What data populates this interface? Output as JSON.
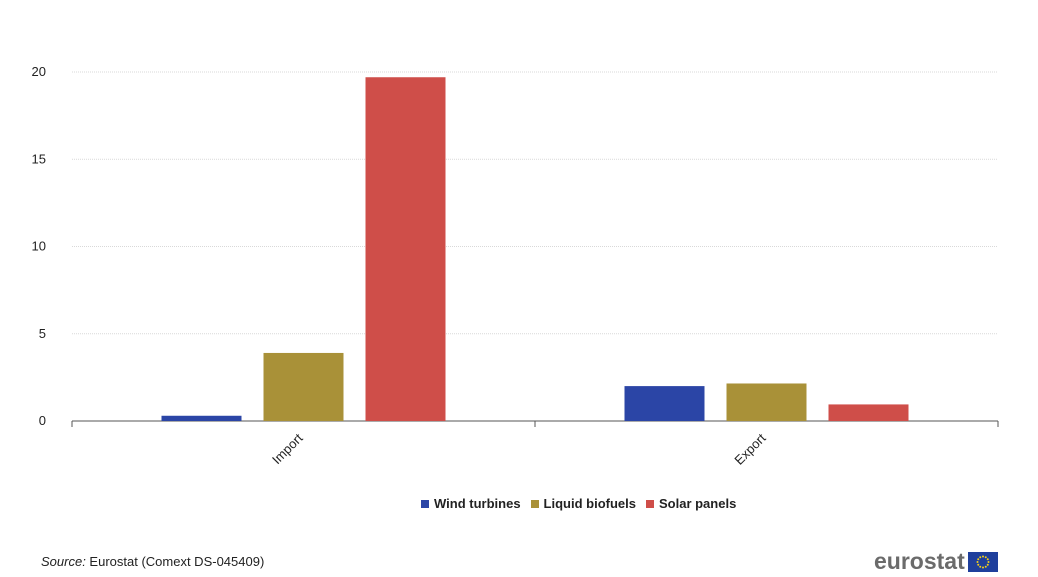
{
  "colors": {
    "wind_turbines": "#2b45a6",
    "liquid_biofuels": "#a99138",
    "solar_panels": "#cf4e49",
    "grid": "#d9d9d9",
    "axis": "#555555",
    "logo_text": "#6b6b6b",
    "eu_flag_blue": "#1f3f9c",
    "eu_flag_star": "#f7d117"
  },
  "chart_data": {
    "type": "bar",
    "categories": [
      "Import",
      "Export"
    ],
    "series": [
      {
        "name": "Wind turbines",
        "values": [
          0.3,
          2.0
        ],
        "color": "#2b45a6"
      },
      {
        "name": "Liquid biofuels",
        "values": [
          3.9,
          2.15
        ],
        "color": "#a99138"
      },
      {
        "name": "Solar panels",
        "values": [
          19.7,
          0.95
        ],
        "color": "#cf4e49"
      }
    ],
    "y_ticks": [
      "0",
      "5",
      "10",
      "15",
      "20"
    ],
    "ylim": [
      0,
      20
    ],
    "grid": true,
    "legend_position": "bottom-center",
    "title": "",
    "xlabel": "",
    "ylabel": ""
  },
  "legend": {
    "items": [
      {
        "label": "Wind turbines",
        "color": "#2b45a6"
      },
      {
        "label": "Liquid biofuels",
        "color": "#a99138"
      },
      {
        "label": "Solar panels",
        "color": "#cf4e49"
      }
    ]
  },
  "source": {
    "label": "Source:",
    "text": " Eurostat (Comext  DS-045409)"
  },
  "logo": {
    "text": "eurostat",
    "icon": "eu-flag-icon"
  }
}
